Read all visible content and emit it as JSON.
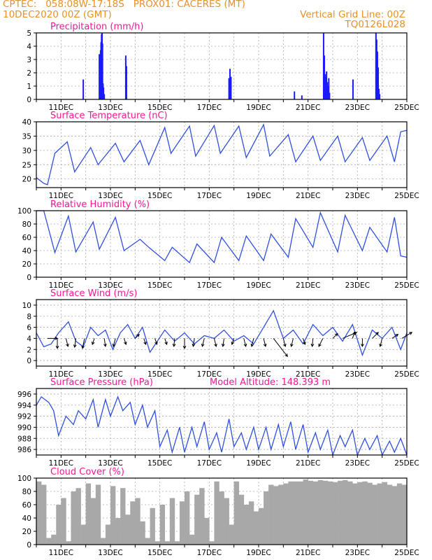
{
  "header": {
    "line1_left": "CPTEC:   058:08W-17:18S   PROX01: CACERES (MT)",
    "line2_left": "10DEC2020 00Z (GMT)",
    "line2_right": "Vertical Grid Line: 00Z",
    "line3_right": "TQ0126L028"
  },
  "colors": {
    "header": "#e8902a",
    "panel_title": "#ff1493",
    "line": "#2f4fe0",
    "bar": "#1a1aff",
    "cloud": "#a8a8a8",
    "arrow": "#000000",
    "grid": "#aaaaaa"
  },
  "chart_data": [
    {
      "type": "bar",
      "name": "precipitation",
      "title": "Precipitation (mm/h)",
      "xlim": [
        0,
        15
      ],
      "x_tick_labels": [
        "11DEC",
        "13DEC",
        "15DEC",
        "17DEC",
        "19DEC",
        "21DEC",
        "23DEC",
        "25DEC"
      ],
      "ylim": [
        0,
        5
      ],
      "y_ticks": [
        0,
        1,
        2,
        3,
        4,
        5
      ],
      "x": [
        1.9,
        2.55,
        2.6,
        2.62,
        2.64,
        2.66,
        2.68,
        2.7,
        2.72,
        2.75,
        3.62,
        3.65,
        7.8,
        7.84,
        7.88,
        10.45,
        10.75,
        11.63,
        11.66,
        11.69,
        11.72,
        11.75,
        11.78,
        11.81,
        11.84,
        11.87,
        12.82,
        13.75,
        13.78,
        13.81,
        13.84,
        13.87,
        13.9
      ],
      "values": [
        1.5,
        3.4,
        3.7,
        4.3,
        4.9,
        5.0,
        4.2,
        1.2,
        0.9,
        0.4,
        3.3,
        2.5,
        1.6,
        2.3,
        1.7,
        0.6,
        0.3,
        5.0,
        3.3,
        1.9,
        1.7,
        2.1,
        1.3,
        1.0,
        1.6,
        0.5,
        1.5,
        5.0,
        4.5,
        3.6,
        2.4,
        0.8,
        0.4
      ]
    },
    {
      "type": "line",
      "name": "temperature",
      "title": "Surface Temperature (nC)",
      "xlim": [
        0,
        15
      ],
      "x_tick_labels": [
        "11DEC",
        "13DEC",
        "15DEC",
        "17DEC",
        "19DEC",
        "21DEC",
        "23DEC",
        "25DEC"
      ],
      "ylim": [
        17,
        40
      ],
      "y_ticks": [
        20,
        25,
        30,
        35,
        40
      ],
      "x": [
        0,
        0.3,
        0.45,
        0.75,
        1.25,
        1.55,
        2.2,
        2.5,
        3.2,
        3.55,
        4.2,
        4.55,
        5.2,
        5.45,
        6.2,
        6.45,
        7.2,
        7.45,
        8.2,
        8.5,
        9.2,
        9.45,
        10.2,
        10.5,
        11.2,
        11.5,
        12.2,
        12.5,
        13.2,
        13.5,
        14.2,
        14.5,
        14.75,
        15
      ],
      "values": [
        20.5,
        18.5,
        18.0,
        29.0,
        33.0,
        22.5,
        31.0,
        25.0,
        32.5,
        26.0,
        33.5,
        25.0,
        38.0,
        29.0,
        38.5,
        28.0,
        38.7,
        29.0,
        38.5,
        27.5,
        39.0,
        28.0,
        35.5,
        26.0,
        35.0,
        26.5,
        35.0,
        26.0,
        34.5,
        26.5,
        35.0,
        26.0,
        36.5,
        37.0
      ]
    },
    {
      "type": "line",
      "name": "humidity",
      "title": "Relative Humidity (%)",
      "xlim": [
        0,
        15
      ],
      "x_tick_labels": [
        "11DEC",
        "13DEC",
        "15DEC",
        "17DEC",
        "19DEC",
        "21DEC",
        "23DEC",
        "25DEC"
      ],
      "ylim": [
        0,
        100
      ],
      "y_ticks": [
        0,
        20,
        40,
        60,
        80,
        100
      ],
      "x": [
        0,
        0.3,
        0.75,
        1.3,
        1.6,
        2.3,
        2.55,
        3.2,
        3.55,
        4.2,
        4.55,
        5.2,
        5.5,
        6.2,
        6.5,
        7.2,
        7.5,
        8.2,
        8.5,
        9.2,
        9.5,
        10.2,
        10.5,
        11.2,
        11.5,
        12.2,
        12.5,
        13.2,
        13.5,
        14.2,
        14.5,
        14.75,
        15
      ],
      "values": [
        100,
        100,
        37,
        92,
        38,
        83,
        42,
        90,
        40,
        57,
        45,
        25,
        45,
        22,
        50,
        22,
        60,
        25,
        62,
        25,
        65,
        30,
        88,
        45,
        97,
        38,
        93,
        40,
        75,
        38,
        90,
        32,
        30
      ]
    },
    {
      "type": "line",
      "name": "wind",
      "title": "Surface Wind (m/s)",
      "xlim": [
        0,
        15
      ],
      "x_tick_labels": [
        "11DEC",
        "13DEC",
        "15DEC",
        "17DEC",
        "19DEC",
        "21DEC",
        "23DEC",
        "25DEC"
      ],
      "ylim": [
        -1,
        11
      ],
      "y_ticks": [
        0,
        2,
        4,
        6,
        8,
        10
      ],
      "x": [
        0,
        0.3,
        0.6,
        0.9,
        1.3,
        1.6,
        1.9,
        2.2,
        2.5,
        2.8,
        3.1,
        3.4,
        3.7,
        4.0,
        4.3,
        4.6,
        4.9,
        5.2,
        5.6,
        6.0,
        6.4,
        6.8,
        7.2,
        7.6,
        8.0,
        8.4,
        8.8,
        9.2,
        9.6,
        10.0,
        10.4,
        10.8,
        11.2,
        11.6,
        12.0,
        12.4,
        12.8,
        13.2,
        13.6,
        14.0,
        14.4,
        14.75,
        15
      ],
      "values": [
        5.0,
        2.5,
        3.0,
        5.0,
        7.0,
        3.5,
        2.5,
        6.0,
        4.5,
        5.5,
        2.0,
        5.0,
        6.5,
        4.0,
        6.0,
        1.5,
        3.5,
        5.5,
        3.5,
        5.0,
        3.0,
        4.5,
        4.0,
        5.5,
        3.5,
        4.5,
        3.0,
        6.0,
        9.0,
        4.0,
        5.5,
        3.0,
        6.5,
        4.5,
        6.0,
        3.5,
        6.5,
        1.0,
        5.5,
        4.0,
        6.0,
        2.0,
        5.0
      ],
      "arrows": {
        "x": [
          0.45,
          0.85,
          1.2,
          1.6,
          1.95,
          2.35,
          2.75,
          3.2,
          3.55,
          4.0,
          4.35,
          4.8,
          5.2,
          5.6,
          6.0,
          6.4,
          6.8,
          7.2,
          7.6,
          8.0,
          8.4,
          8.8,
          9.2,
          9.6,
          10.0,
          10.4,
          10.8,
          11.2,
          11.6,
          12.0,
          12.4,
          12.8,
          13.2,
          13.6,
          14.0,
          14.4,
          14.8
        ],
        "u": [
          2.5,
          0,
          0.5,
          -0.3,
          -0.5,
          -0.5,
          0.3,
          -0.5,
          0.5,
          1.0,
          0.5,
          0.5,
          0.5,
          -0.2,
          0,
          -0.3,
          -0.5,
          0.5,
          -0.3,
          -0.5,
          0.5,
          -0.5,
          0.5,
          3.5,
          0.5,
          -0.5,
          0.5,
          -0.2,
          -1.0,
          1.2,
          3.5,
          0.5,
          0,
          1.5,
          -0.5,
          1.5,
          2.5
        ],
        "v": [
          0,
          -2.5,
          -2.0,
          -2.2,
          -2.5,
          -1.5,
          -2.0,
          -2.0,
          -1.5,
          1.0,
          -1.5,
          -1.5,
          -1.5,
          -2.0,
          -2.5,
          -2.0,
          -2.0,
          -2.0,
          -2.0,
          -1.5,
          -2.0,
          -2.0,
          -2.0,
          -4.5,
          -2.0,
          -2.0,
          -1.5,
          -2.0,
          -2.0,
          1.2,
          1.5,
          1.5,
          -2.0,
          1.5,
          -2.0,
          1.0,
          1.5
        ]
      }
    },
    {
      "type": "line",
      "name": "pressure",
      "title": "Surface Pressure (hPa)",
      "annotation": "Model Altitude: 148.393 m",
      "xlim": [
        0,
        15
      ],
      "x_tick_labels": [
        "11DEC",
        "13DEC",
        "15DEC",
        "17DEC",
        "19DEC",
        "21DEC",
        "23DEC",
        "25DEC"
      ],
      "ylim": [
        985,
        997
      ],
      "y_ticks": [
        986,
        988,
        990,
        992,
        994,
        996
      ],
      "x": [
        0,
        0.2,
        0.5,
        0.7,
        0.9,
        1.2,
        1.5,
        1.7,
        2.0,
        2.3,
        2.5,
        2.8,
        3.0,
        3.3,
        3.5,
        3.8,
        4.0,
        4.3,
        4.5,
        4.8,
        5.0,
        5.3,
        5.5,
        5.8,
        6.0,
        6.3,
        6.5,
        6.8,
        7.0,
        7.3,
        7.5,
        7.8,
        8.0,
        8.3,
        8.5,
        8.8,
        9.0,
        9.3,
        9.5,
        9.8,
        10.0,
        10.3,
        10.5,
        10.8,
        11.0,
        11.3,
        11.5,
        11.8,
        12.0,
        12.3,
        12.5,
        12.8,
        13.0,
        13.3,
        13.5,
        13.8,
        14.0,
        14.3,
        14.5,
        14.75,
        15
      ],
      "values": [
        994.0,
        995.5,
        994.5,
        993.0,
        988.5,
        992.0,
        990.5,
        993.0,
        991.5,
        995.0,
        990.0,
        995.0,
        992.0,
        995.5,
        993.0,
        994.5,
        990.5,
        994.0,
        990.0,
        993.0,
        986.5,
        989.5,
        985.5,
        990.0,
        985.5,
        990.0,
        986.5,
        991.0,
        986.0,
        989.0,
        985.5,
        991.5,
        986.5,
        989.0,
        986.0,
        990.0,
        986.0,
        990.0,
        986.0,
        990.5,
        986.5,
        991.0,
        986.0,
        990.5,
        985.5,
        989.0,
        986.0,
        989.5,
        985.0,
        988.5,
        986.5,
        989.5,
        985.0,
        988.0,
        986.0,
        988.5,
        985.0,
        987.5,
        985.5,
        988.0,
        985.0
      ]
    },
    {
      "type": "bar",
      "name": "cloud",
      "title": "Cloud Cover (%)",
      "xlim": [
        0,
        15
      ],
      "x_tick_labels": [
        "11DEC",
        "13DEC",
        "15DEC",
        "17DEC",
        "19DEC",
        "21DEC",
        "23DEC",
        "25DEC"
      ],
      "ylim": [
        0,
        100
      ],
      "y_ticks": [
        0,
        20,
        40,
        60,
        80,
        100
      ],
      "x": [
        0,
        0.2,
        0.4,
        0.6,
        0.8,
        1.0,
        1.2,
        1.4,
        1.6,
        1.8,
        2.0,
        2.2,
        2.4,
        2.6,
        2.8,
        3.0,
        3.2,
        3.4,
        3.6,
        3.8,
        4.0,
        4.2,
        4.4,
        4.6,
        4.8,
        5.0,
        5.2,
        5.4,
        5.6,
        5.8,
        6.0,
        6.2,
        6.4,
        6.6,
        6.8,
        7.0,
        7.2,
        7.4,
        7.6,
        7.8,
        8.0,
        8.2,
        8.4,
        8.6,
        8.8,
        9.0,
        9.2,
        9.4,
        9.6,
        9.8,
        10.0,
        10.2,
        10.4,
        10.6,
        10.8,
        11.0,
        11.2,
        11.4,
        11.6,
        11.8,
        12.0,
        12.2,
        12.4,
        12.6,
        12.8,
        13.0,
        13.2,
        13.4,
        13.6,
        13.8,
        14.0,
        14.2,
        14.4,
        14.6,
        14.8
      ],
      "values": [
        95,
        90,
        10,
        15,
        60,
        70,
        5,
        80,
        85,
        30,
        92,
        70,
        90,
        10,
        30,
        88,
        40,
        85,
        45,
        65,
        70,
        35,
        10,
        55,
        5,
        60,
        5,
        70,
        5,
        65,
        80,
        15,
        75,
        85,
        40,
        5,
        95,
        80,
        70,
        30,
        95,
        75,
        60,
        65,
        50,
        55,
        80,
        90,
        88,
        90,
        92,
        95,
        95,
        95,
        98,
        96,
        95,
        97,
        96,
        95,
        94,
        96,
        97,
        95,
        92,
        94,
        95,
        93,
        90,
        92,
        94,
        90,
        88,
        92,
        90
      ]
    }
  ]
}
